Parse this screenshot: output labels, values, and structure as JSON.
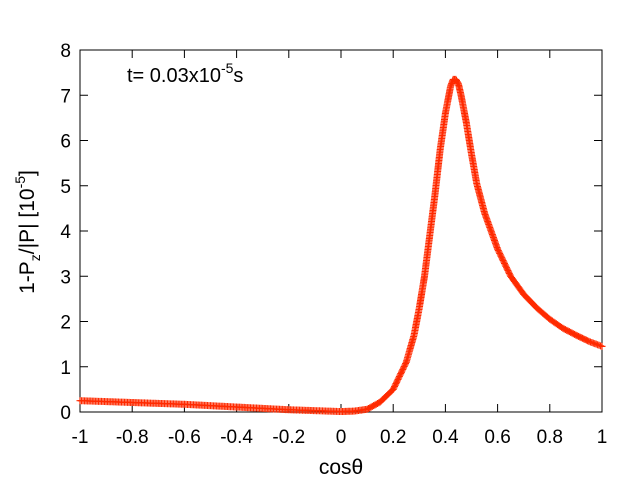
{
  "chart_data": {
    "type": "scatter",
    "title": "",
    "xlabel": "cosθ",
    "ylabel_main": "1-P",
    "ylabel_sub": "z",
    "ylabel_rest": "/|P| [10",
    "ylabel_sup": "-5",
    "ylabel_end": "]",
    "annotation": {
      "prefix": "t=  0.03x10",
      "sup": "-5",
      "suffix": "s"
    },
    "xlim": [
      -1,
      1
    ],
    "ylim": [
      0,
      8
    ],
    "x_ticks": [
      -1,
      -0.8,
      -0.6,
      -0.4,
      -0.2,
      0,
      0.2,
      0.4,
      0.6,
      0.8,
      1
    ],
    "x_tick_labels": [
      "-1",
      "-0.8",
      "-0.6",
      "-0.4",
      "-0.2",
      "0",
      "0.2",
      "0.4",
      "0.6",
      "0.8",
      "1"
    ],
    "y_ticks": [
      0,
      1,
      2,
      3,
      4,
      5,
      6,
      7,
      8
    ],
    "y_tick_labels": [
      "0",
      "1",
      "2",
      "3",
      "4",
      "5",
      "6",
      "7",
      "8"
    ],
    "grid": false,
    "marker": "plus",
    "color": "#ff2a00",
    "series": [
      {
        "x": [
          -1.0,
          -0.9,
          -0.8,
          -0.7,
          -0.6,
          -0.5,
          -0.4,
          -0.3,
          -0.2,
          -0.1,
          0.0,
          0.05,
          0.1,
          0.15,
          0.2,
          0.25,
          0.28,
          0.3,
          0.32,
          0.34,
          0.36,
          0.38,
          0.4,
          0.42,
          0.43,
          0.44,
          0.45,
          0.46,
          0.48,
          0.5,
          0.52,
          0.55,
          0.6,
          0.65,
          0.7,
          0.75,
          0.8,
          0.85,
          0.9,
          0.95,
          1.0
        ],
        "y": [
          0.25,
          0.23,
          0.21,
          0.19,
          0.17,
          0.14,
          0.11,
          0.08,
          0.05,
          0.03,
          0.01,
          0.02,
          0.06,
          0.22,
          0.5,
          1.1,
          1.7,
          2.3,
          3.0,
          3.9,
          4.8,
          5.8,
          6.6,
          7.2,
          7.35,
          7.35,
          7.25,
          7.0,
          6.4,
          5.7,
          5.05,
          4.4,
          3.6,
          3.0,
          2.6,
          2.3,
          2.05,
          1.85,
          1.7,
          1.56,
          1.45
        ]
      }
    ]
  }
}
